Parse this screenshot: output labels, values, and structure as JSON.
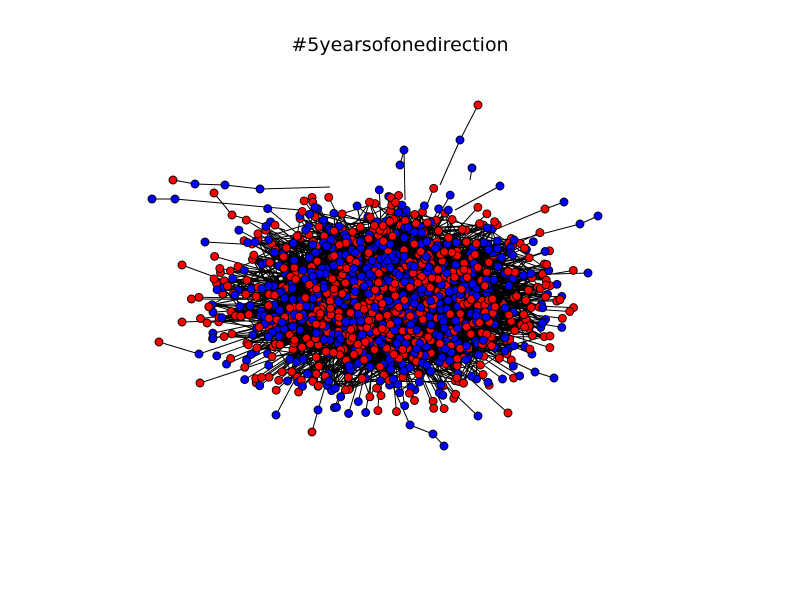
{
  "title": "#5yearsofonedirection",
  "graph": {
    "node_colors": [
      "#ff0000",
      "#0000ff"
    ],
    "edge_color": "#000000",
    "node_outline": "#000000",
    "background": "#ffffff"
  }
}
